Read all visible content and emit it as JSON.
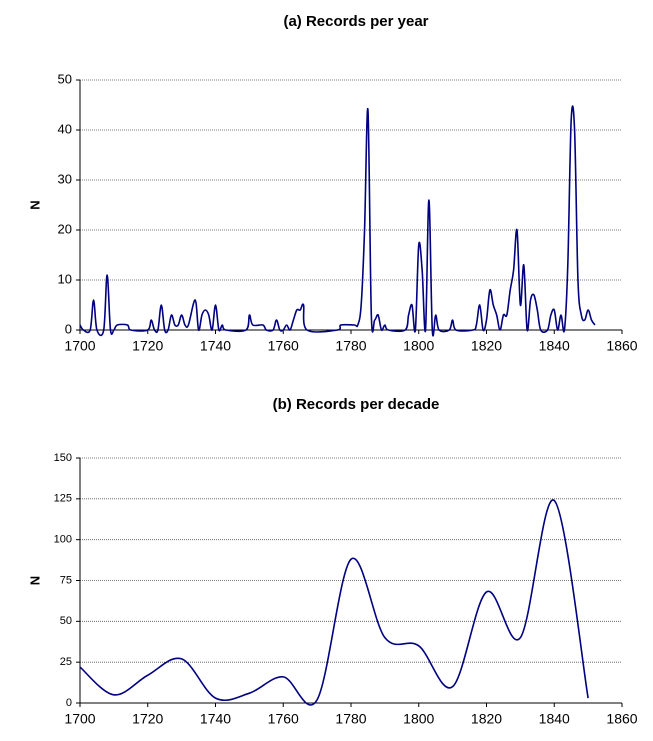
{
  "chart_data": [
    {
      "type": "line",
      "title": "(a) Records per year",
      "y_label": "N",
      "series": [
        {
          "name": "Records",
          "color": "#000080",
          "x": [
            1700,
            1701,
            1703,
            1704,
            1705,
            1707,
            1708,
            1709,
            1710,
            1711,
            1714,
            1715,
            1720,
            1721,
            1722,
            1723,
            1724,
            1725,
            1726,
            1727,
            1728,
            1729,
            1730,
            1731,
            1732,
            1734,
            1735,
            1736,
            1737,
            1738,
            1739,
            1740,
            1741,
            1742,
            1743,
            1749,
            1750,
            1751,
            1754,
            1755,
            1757,
            1758,
            1759,
            1760,
            1761,
            1762,
            1763,
            1764,
            1765,
            1766,
            1767,
            1776,
            1777,
            1781,
            1782,
            1783,
            1784,
            1785,
            1786,
            1787,
            1788,
            1789,
            1790,
            1791,
            1796,
            1797,
            1798,
            1799,
            1800,
            1801,
            1802,
            1803,
            1804,
            1805,
            1806,
            1809,
            1810,
            1811,
            1816,
            1817,
            1818,
            1819,
            1820,
            1821,
            1822,
            1823,
            1824,
            1825,
            1826,
            1827,
            1828,
            1829,
            1830,
            1831,
            1832,
            1833,
            1834,
            1835,
            1836,
            1838,
            1839,
            1840,
            1841,
            1842,
            1843,
            1844,
            1845,
            1846,
            1847,
            1848,
            1849,
            1850,
            1851,
            1852
          ],
          "values": [
            1,
            0,
            0,
            6,
            0,
            0,
            11,
            0,
            0,
            1,
            1,
            0,
            0,
            2,
            0,
            0,
            5,
            0,
            0,
            3,
            1,
            1,
            3,
            1,
            1,
            6,
            0,
            3,
            4,
            3,
            0,
            5,
            0,
            1,
            0,
            0,
            3,
            1,
            1,
            0,
            0,
            2,
            0,
            0,
            1,
            0,
            2,
            4,
            4,
            5,
            0,
            0,
            1,
            1,
            1,
            5,
            20,
            44,
            3,
            2,
            3,
            0,
            1,
            0,
            0,
            3,
            5,
            0,
            17,
            12,
            0,
            26,
            0,
            3,
            0,
            0,
            2,
            0,
            0,
            1,
            5,
            0,
            2,
            8,
            5,
            3,
            0,
            3,
            3,
            8,
            12,
            20,
            5,
            13,
            0,
            6,
            7,
            4,
            0,
            0,
            3,
            4,
            0,
            3,
            0,
            13,
            42,
            40,
            10,
            3,
            2,
            4,
            2,
            1
          ]
        }
      ],
      "xlim": [
        1700,
        1860
      ],
      "xticks": [
        1700,
        1720,
        1740,
        1760,
        1780,
        1800,
        1820,
        1840,
        1860
      ],
      "ylim": [
        0,
        50
      ],
      "yticks": [
        0,
        10,
        20,
        30,
        40,
        50
      ],
      "grid": true
    },
    {
      "type": "line",
      "title": "(b) Records per decade",
      "y_label": "N",
      "series": [
        {
          "name": "Records",
          "color": "#000080",
          "x": [
            1700,
            1710,
            1720,
            1730,
            1740,
            1750,
            1760,
            1770,
            1780,
            1790,
            1800,
            1810,
            1820,
            1830,
            1840,
            1850
          ],
          "values": [
            22,
            5,
            17,
            27,
            3,
            6,
            16,
            2,
            88,
            40,
            35,
            10,
            68,
            40,
            124,
            3
          ]
        }
      ],
      "xlim": [
        1700,
        1860
      ],
      "xticks": [
        1700,
        1720,
        1740,
        1760,
        1780,
        1800,
        1820,
        1840,
        1860
      ],
      "ylim": [
        0,
        150
      ],
      "yticks": [
        0,
        25,
        50,
        75,
        100,
        125,
        150
      ],
      "grid": true
    }
  ]
}
